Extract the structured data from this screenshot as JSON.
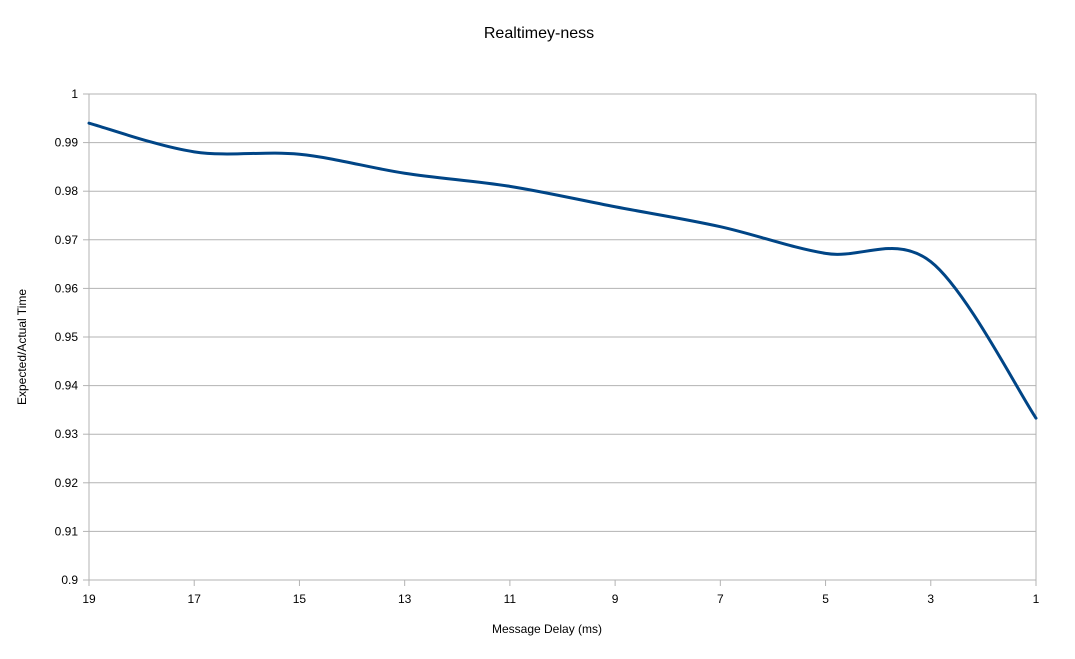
{
  "chart_data": {
    "type": "line",
    "title": "Realtimey-ness",
    "xlabel": "Message Delay (ms)",
    "ylabel": "Expected/Actual Time",
    "x": [
      19,
      17,
      15,
      13,
      11,
      9,
      7,
      5,
      3,
      1
    ],
    "x_reversed": true,
    "smooth": true,
    "series": [
      {
        "values": [
          0.994,
          0.9881,
          0.9876,
          0.9837,
          0.981,
          0.9768,
          0.9727,
          0.9672,
          0.9655,
          0.9333
        ],
        "color": "#004586"
      }
    ],
    "ylim": [
      0.9,
      1
    ],
    "xlim": [
      19,
      1
    ],
    "y_ticks": [
      "0.9",
      "0.91",
      "0.92",
      "0.93",
      "0.94",
      "0.95",
      "0.96",
      "0.97",
      "0.98",
      "0.99",
      "1"
    ],
    "x_ticks": [
      "19",
      "17",
      "15",
      "13",
      "11",
      "9",
      "7",
      "5",
      "3",
      "1"
    ],
    "grid": true,
    "legend": "none"
  }
}
